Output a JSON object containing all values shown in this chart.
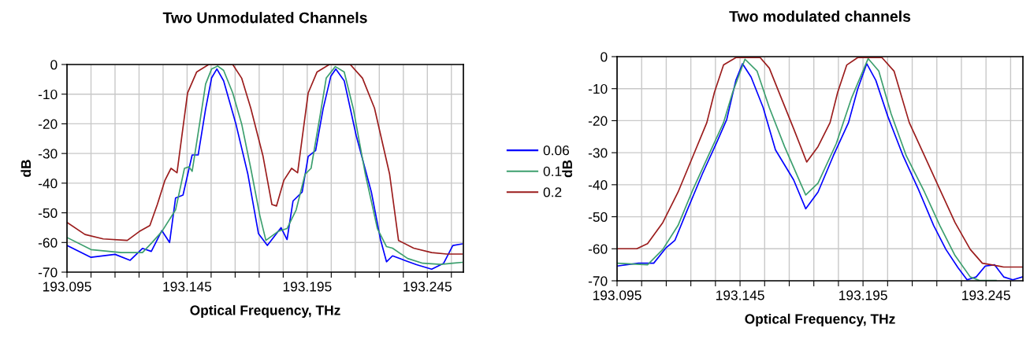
{
  "chart_data": [
    {
      "type": "line",
      "title": "Two Unmodulated Channels",
      "xlabel": "Optical Frequency, THz",
      "ylabel": "dB",
      "xlim": [
        193.095,
        193.26
      ],
      "ylim": [
        -70,
        0
      ],
      "xticks": [
        193.095,
        {
          "value": 193.105,
          "label": null
        },
        {
          "value": 193.115,
          "label": null
        },
        {
          "value": 193.125,
          "label": null
        },
        {
          "value": 193.135,
          "label": null
        },
        193.145,
        {
          "value": 193.155,
          "label": null
        },
        {
          "value": 193.165,
          "label": null
        },
        {
          "value": 193.175,
          "label": null
        },
        {
          "value": 193.185,
          "label": null
        },
        193.195,
        {
          "value": 193.205,
          "label": null
        },
        {
          "value": 193.215,
          "label": null
        },
        {
          "value": 193.225,
          "label": null
        },
        {
          "value": 193.235,
          "label": null
        },
        193.245,
        {
          "value": 193.255,
          "label": null
        }
      ],
      "yticks": [
        0,
        -10,
        -20,
        -30,
        -40,
        -50,
        -60,
        -70
      ],
      "grid": true,
      "legend": "right",
      "series": [
        {
          "name": "0.06",
          "color": "#0000ff",
          "x": [
            193.095,
            193.105,
            193.115,
            193.1213,
            193.1264,
            193.1301,
            193.1345,
            193.1377,
            193.1402,
            193.1433,
            193.1471,
            193.1496,
            193.1527,
            193.1552,
            193.1574,
            193.1602,
            193.1653,
            193.1703,
            193.1747,
            193.1784,
            193.1841,
            193.1866,
            193.1891,
            193.1929,
            193.1954,
            193.1985,
            193.2016,
            193.2048,
            193.2069,
            193.2104,
            193.2154,
            193.2217,
            193.2255,
            193.228,
            193.2305,
            193.2355,
            193.2405,
            193.2468,
            193.2518,
            193.2556,
            193.2594
          ],
          "values": [
            -61,
            -65,
            -64,
            -66,
            -62,
            -63,
            -56,
            -60,
            -45,
            -44,
            -30.5,
            -30.5,
            -15,
            -4.5,
            -1.5,
            -5.5,
            -20,
            -37,
            -57,
            -61,
            -55,
            -59,
            -46,
            -43,
            -31,
            -29,
            -15,
            -4,
            -1.5,
            -5.5,
            -24,
            -43,
            -59,
            -66.5,
            -64.5,
            -66,
            -67.5,
            -69,
            -67,
            -61,
            -60.5
          ]
        },
        {
          "name": "0.1",
          "color": "#3c9f6e",
          "x": [
            193.095,
            193.105,
            193.1176,
            193.1264,
            193.1301,
            193.1345,
            193.1402,
            193.1439,
            193.1458,
            193.1471,
            193.1502,
            193.1527,
            193.1552,
            193.1577,
            193.1602,
            193.164,
            193.1677,
            193.1715,
            193.1753,
            193.1778,
            193.1828,
            193.1866,
            193.1904,
            193.1941,
            193.1966,
            193.2004,
            193.2029,
            193.2067,
            193.2104,
            193.2142,
            193.2192,
            193.2242,
            193.228,
            193.2305,
            193.2368,
            193.2431,
            193.2506,
            193.2556,
            193.2594
          ],
          "values": [
            -58.3,
            -62.4,
            -63.4,
            -63.4,
            -60.3,
            -56.3,
            -49,
            -35,
            -34.5,
            -36,
            -20,
            -6.6,
            -1.5,
            -0.5,
            -2,
            -9.6,
            -20,
            -35,
            -51,
            -59.3,
            -56.3,
            -55.3,
            -49,
            -37,
            -35,
            -17,
            -4.6,
            -0.7,
            -2.5,
            -15,
            -37,
            -55.3,
            -61.4,
            -61.9,
            -65.4,
            -67,
            -67.4,
            -67,
            -66.7
          ]
        },
        {
          "name": "0.2",
          "color": "#9b1c1c",
          "x": [
            193.095,
            193.1025,
            193.1101,
            193.1201,
            193.1251,
            193.1295,
            193.1326,
            193.1358,
            193.1383,
            193.1408,
            193.1427,
            193.1452,
            193.149,
            193.154,
            193.164,
            193.1677,
            193.1715,
            193.1766,
            193.1803,
            193.1822,
            193.1853,
            193.1885,
            193.191,
            193.1929,
            193.1954,
            193.1991,
            193.2042,
            193.2129,
            193.218,
            193.223,
            193.2293,
            193.233,
            193.2393,
            193.2468,
            193.2531,
            193.2594
          ],
          "values": [
            -53.2,
            -57.3,
            -58.8,
            -59.3,
            -56.3,
            -54.3,
            -47.2,
            -39,
            -35,
            -36.5,
            -24.8,
            -9.6,
            -2.5,
            0,
            0,
            -4.6,
            -14.7,
            -30.9,
            -47.2,
            -47.7,
            -39,
            -35,
            -36.5,
            -24.8,
            -9.6,
            -2.5,
            0,
            0,
            -4.6,
            -14.7,
            -37,
            -59.3,
            -61.9,
            -63.4,
            -63.9,
            -63.9
          ]
        }
      ]
    },
    {
      "type": "line",
      "title": "Two modulated channels",
      "xlabel": "Optical Frequency, THz",
      "ylabel": "dB",
      "xlim": [
        193.095,
        193.26
      ],
      "ylim": [
        -70,
        0
      ],
      "xticks": [
        193.095,
        {
          "value": 193.105,
          "label": null
        },
        {
          "value": 193.115,
          "label": null
        },
        {
          "value": 193.125,
          "label": null
        },
        {
          "value": 193.135,
          "label": null
        },
        193.145,
        {
          "value": 193.155,
          "label": null
        },
        {
          "value": 193.165,
          "label": null
        },
        {
          "value": 193.175,
          "label": null
        },
        {
          "value": 193.185,
          "label": null
        },
        193.195,
        {
          "value": 193.205,
          "label": null
        },
        {
          "value": 193.215,
          "label": null
        },
        {
          "value": 193.225,
          "label": null
        },
        {
          "value": 193.235,
          "label": null
        },
        193.245,
        {
          "value": 193.255,
          "label": null
        }
      ],
      "yticks": [
        0,
        -10,
        -20,
        -30,
        -40,
        -50,
        -60,
        -70
      ],
      "grid": true,
      "series": [
        {
          "color": "#0000ff",
          "x": [
            193.095,
            193.1037,
            193.1099,
            193.1148,
            193.1185,
            193.1235,
            193.1297,
            193.1358,
            193.1396,
            193.1433,
            193.146,
            193.1495,
            193.1544,
            193.1594,
            193.1668,
            193.1717,
            193.1767,
            193.1829,
            193.1891,
            193.1928,
            193.1965,
            193.2002,
            193.2051,
            193.2113,
            193.2175,
            193.2237,
            193.2287,
            193.2336,
            193.2373,
            193.241,
            193.2447,
            193.2485,
            193.2522,
            193.2559,
            193.2598
          ],
          "values": [
            -65.4,
            -64.5,
            -64.5,
            -59.8,
            -57.4,
            -48,
            -36.6,
            -26.3,
            -19.6,
            -7.4,
            -2.2,
            -6.4,
            -15.9,
            -29.1,
            -38.5,
            -47.5,
            -42.3,
            -31,
            -20.6,
            -10.2,
            -2.2,
            -7.4,
            -18.7,
            -31,
            -41.4,
            -52.7,
            -60.2,
            -65.9,
            -69.7,
            -68.8,
            -65.4,
            -65,
            -68.8,
            -69.7,
            -68.8
          ]
        },
        {
          "color": "#3c9f6e",
          "x": [
            193.095,
            193.1074,
            193.1136,
            193.1198,
            193.1259,
            193.1321,
            193.1383,
            193.142,
            193.147,
            193.1519,
            193.1569,
            193.1631,
            193.1717,
            193.1767,
            193.1841,
            193.1903,
            193.1971,
            193.2014,
            193.2064,
            193.2126,
            193.22,
            193.2262,
            193.2324,
            193.2386,
            193.2423,
            193.2491
          ],
          "values": [
            -64.5,
            -65,
            -60.2,
            -52.7,
            -41.4,
            -31,
            -20.6,
            -11.1,
            -0.8,
            -4.5,
            -15.9,
            -28.1,
            -43.2,
            -39.5,
            -27.2,
            -13,
            -0.6,
            -4.5,
            -17.8,
            -31,
            -42.3,
            -52.7,
            -62.1,
            -68.8,
            -69.9,
            -69.9
          ]
        },
        {
          "color": "#9b1c1c",
          "x": [
            193.095,
            193.103,
            193.1074,
            193.1136,
            193.1198,
            193.1259,
            193.1315,
            193.1346,
            193.1383,
            193.1433,
            193.1532,
            193.1569,
            193.1618,
            193.1668,
            193.1721,
            193.1767,
            193.1816,
            193.1847,
            193.1884,
            193.1928,
            193.2027,
            193.2076,
            193.2138,
            193.22,
            193.2262,
            193.2324,
            193.2386,
            193.2435,
            193.2522,
            193.2598
          ],
          "values": [
            -60,
            -60,
            -58.4,
            -51.8,
            -42.3,
            -31,
            -20.6,
            -11.1,
            -2.6,
            -0.3,
            -0.3,
            -3.6,
            -13,
            -22.5,
            -32.9,
            -28.1,
            -20.6,
            -11.1,
            -2.6,
            -0.3,
            -0.3,
            -4.5,
            -20.6,
            -31,
            -41.4,
            -51.8,
            -60.2,
            -64.5,
            -65.7,
            -65.7
          ]
        }
      ]
    }
  ]
}
